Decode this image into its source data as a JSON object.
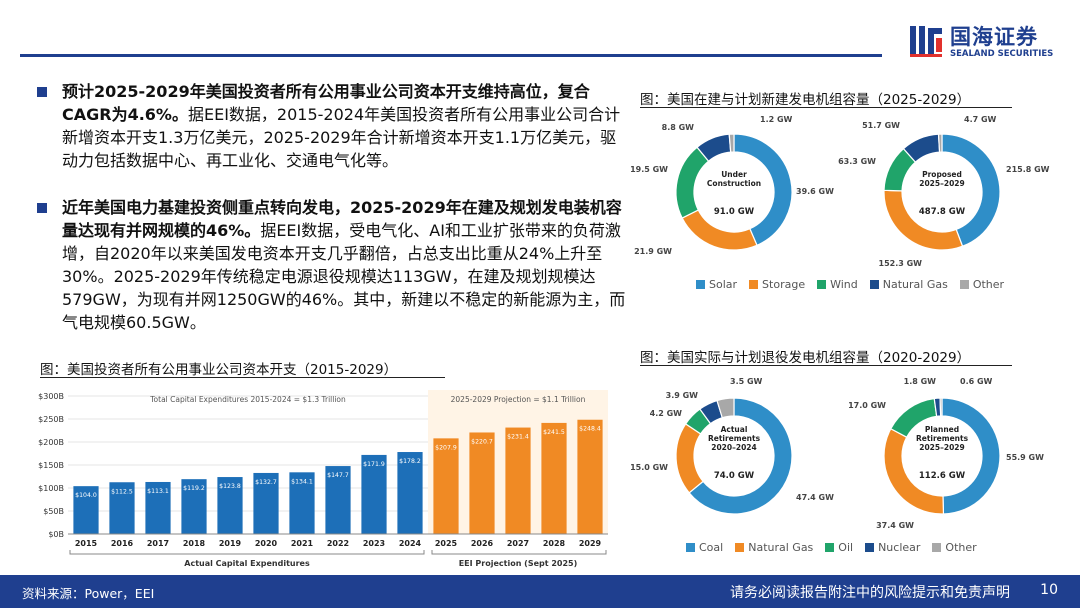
{
  "header": {
    "brand_cn": "国海证券",
    "brand_en": "SEALAND SECURITIES",
    "colors": {
      "primary": "#1f3f8f"
    }
  },
  "bullets": [
    {
      "bold": "预计2025-2029年美国投资者所有公用事业公司资本开支维持高位，复合CAGR为4.6%。",
      "text": "据EEI数据，2015-2024年美国投资者所有公用事业公司合计新增资本开支1.3万亿美元，2025-2029年合计新增资本开支1.1万亿美元，驱动力包括数据中心、再工业化、交通电气化等。"
    },
    {
      "bold": "近年美国电力基建投资侧重点转向发电，2025-2029年在建及规划发电装机容量达现有并网规模的46%。",
      "text": "据EEI数据，受电气化、AI和工业扩张带来的负荷激增，自2020年以来美国发电资本开支几乎翻倍，占总支出比重从24%上升至30%。2025-2029年传统稳定电源退役规模达113GW，在建及规划规模达579GW，为现有并网1250GW的46%。其中，新建以不稳定的新能源为主，而气电规模60.5GW。"
    }
  ],
  "captions": {
    "bar": "图：美国投资者所有公用事业公司资本开支（2015-2029）",
    "donut_top": "图：美国在建与计划新建发电机组容量（2025-2029）",
    "donut_bottom": "图：美国实际与计划退役发电机组容量（2020-2029）"
  },
  "footer": {
    "source": "资料来源：Power，EEI",
    "disclaimer": "请务必阅读报告附注中的风险提示和免责声明",
    "page": "10"
  },
  "chart_data": [
    {
      "type": "bar",
      "title_left": "Total Capital Expenditures 2015-2024 = $1.3 Trillion",
      "title_right": "2025-2029 Projection = $1.1 Trillion",
      "categories": [
        "2015",
        "2016",
        "2017",
        "2018",
        "2019",
        "2020",
        "2021",
        "2022",
        "2023",
        "2024",
        "2025",
        "2026",
        "2027",
        "2028",
        "2029"
      ],
      "values": [
        104.0,
        112.5,
        113.1,
        119.2,
        123.8,
        132.7,
        134.1,
        147.7,
        171.9,
        178.2,
        207.9,
        220.7,
        231.4,
        241.5,
        248.4
      ],
      "value_labels": [
        "$104.0",
        "$112.5",
        "$113.1",
        "$119.2",
        "$123.8",
        "$132.7",
        "$134.1",
        "$147.7",
        "$171.9",
        "$178.2",
        "$207.9",
        "$220.7",
        "$231.4",
        "$241.5",
        "$248.4"
      ],
      "y_ticks": [
        "$0B",
        "$50B",
        "$100B",
        "$150B",
        "$200B",
        "$250B",
        "$300B"
      ],
      "ylim": [
        0,
        300
      ],
      "group_labels": [
        "Actual Capital Expenditures",
        "EEI Projection (Sept 2025)"
      ],
      "colors": {
        "actual": "#1d6fb8",
        "projection": "#f08a24"
      }
    },
    {
      "type": "pie",
      "style": "donut",
      "center_title": [
        "Under",
        "Construction"
      ],
      "center_total": "91.0 GW",
      "slices": [
        {
          "name": "Solar",
          "value": 39.6,
          "label": "39.6 GW"
        },
        {
          "name": "Storage",
          "value": 21.9,
          "label": "21.9 GW"
        },
        {
          "name": "Wind",
          "value": 19.5,
          "label": "19.5 GW"
        },
        {
          "name": "Natural Gas",
          "value": 8.8,
          "label": "8.8 GW"
        },
        {
          "name": "Other",
          "value": 1.2,
          "label": "1.2 GW"
        }
      ]
    },
    {
      "type": "pie",
      "style": "donut",
      "center_title": [
        "Proposed",
        "2025–2029"
      ],
      "center_total": "487.8 GW",
      "slices": [
        {
          "name": "Solar",
          "value": 215.8,
          "label": "215.8 GW"
        },
        {
          "name": "Storage",
          "value": 152.3,
          "label": "152.3 GW"
        },
        {
          "name": "Wind",
          "value": 63.3,
          "label": "63.3 GW"
        },
        {
          "name": "Natural Gas",
          "value": 51.7,
          "label": "51.7 GW"
        },
        {
          "name": "Other",
          "value": 4.7,
          "label": "4.7 GW"
        }
      ]
    },
    {
      "type": "pie",
      "style": "donut",
      "center_title": [
        "Actual",
        "Retirements",
        "2020–2024"
      ],
      "center_total": "74.0 GW",
      "slices": [
        {
          "name": "Coal",
          "value": 47.4,
          "label": "47.4 GW"
        },
        {
          "name": "Natural Gas",
          "value": 15.0,
          "label": "15.0 GW"
        },
        {
          "name": "Oil",
          "value": 4.2,
          "label": "4.2 GW"
        },
        {
          "name": "Nuclear",
          "value": 3.9,
          "label": "3.9 GW"
        },
        {
          "name": "Other",
          "value": 3.5,
          "label": "3.5 GW"
        }
      ]
    },
    {
      "type": "pie",
      "style": "donut",
      "center_title": [
        "Planned",
        "Retirements",
        "2025–2029"
      ],
      "center_total": "112.6 GW",
      "slices": [
        {
          "name": "Coal",
          "value": 55.9,
          "label": "55.9 GW"
        },
        {
          "name": "Natural Gas",
          "value": 37.4,
          "label": "37.4 GW"
        },
        {
          "name": "Oil",
          "value": 17.0,
          "label": "17.0 GW"
        },
        {
          "name": "Nuclear",
          "value": 1.8,
          "label": "1.8 GW"
        },
        {
          "name": "Other",
          "value": 0.6,
          "label": "0.6 GW"
        }
      ]
    }
  ],
  "legends": {
    "top": [
      {
        "name": "Solar",
        "color": "#2f8ec8"
      },
      {
        "name": "Storage",
        "color": "#f08a24"
      },
      {
        "name": "Wind",
        "color": "#20a46a"
      },
      {
        "name": "Natural Gas",
        "color": "#1c4c8c"
      },
      {
        "name": "Other",
        "color": "#a8a8a8"
      }
    ],
    "bottom": [
      {
        "name": "Coal",
        "color": "#2f8ec8"
      },
      {
        "name": "Natural Gas",
        "color": "#f08a24"
      },
      {
        "name": "Oil",
        "color": "#20a46a"
      },
      {
        "name": "Nuclear",
        "color": "#1c4c8c"
      },
      {
        "name": "Other",
        "color": "#a8a8a8"
      }
    ]
  }
}
